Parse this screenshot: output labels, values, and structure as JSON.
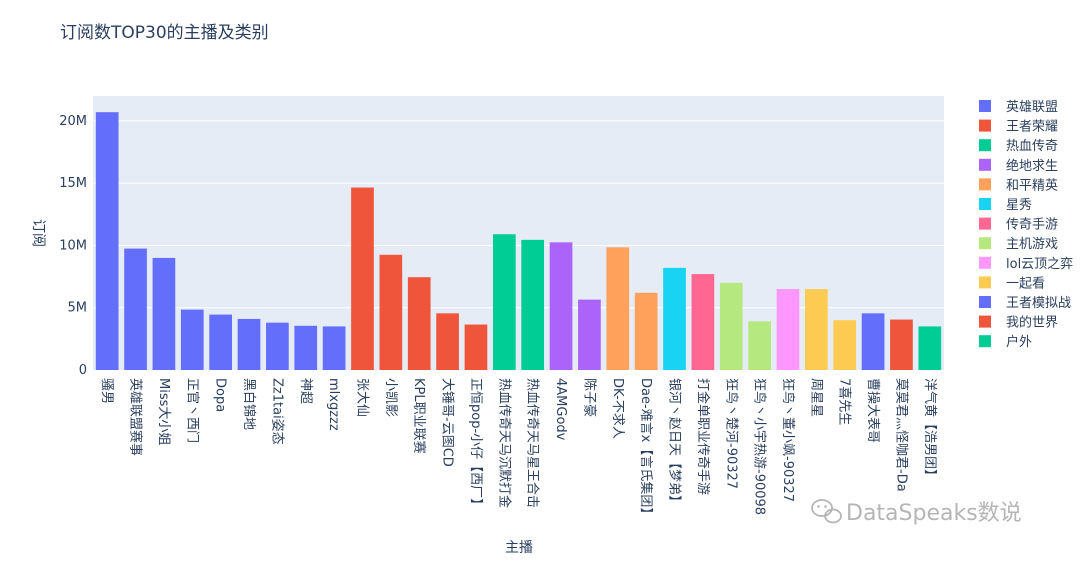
{
  "chart_data": {
    "type": "bar",
    "title": "订阅数TOP30的主播及类别",
    "xlabel": "主播",
    "ylabel": "订阅",
    "ylim": [
      0,
      22
    ],
    "yticks": [
      {
        "value": 0,
        "label": "0"
      },
      {
        "value": 5,
        "label": "5M"
      },
      {
        "value": 10,
        "label": "10M"
      },
      {
        "value": 15,
        "label": "15M"
      },
      {
        "value": 20,
        "label": "20M"
      }
    ],
    "y_unit_note": "values in millions",
    "grid": true,
    "legend_position": "right",
    "series": [
      {
        "name": "英雄联盟",
        "color": "#636efa",
        "points": [
          {
            "x": "骚男",
            "y": 20.7
          },
          {
            "x": "英雄联盟赛事",
            "y": 9.75
          },
          {
            "x": "Miss大小姐",
            "y": 9.0
          },
          {
            "x": "正官丶西门",
            "y": 4.85
          },
          {
            "x": "Dopa",
            "y": 4.45
          },
          {
            "x": "黑白锦地",
            "y": 4.1
          },
          {
            "x": "Zz1tai姿态",
            "y": 3.8
          },
          {
            "x": "神超",
            "y": 3.55
          },
          {
            "x": "mlxgzzz",
            "y": 3.5
          }
        ]
      },
      {
        "name": "王者荣耀",
        "color": "#ef553b",
        "points": [
          {
            "x": "张大仙",
            "y": 14.65
          },
          {
            "x": "小凯影",
            "y": 9.25
          },
          {
            "x": "KPL职业联赛",
            "y": 7.45
          },
          {
            "x": "大锤哥-云图CD",
            "y": 4.55
          },
          {
            "x": "正恒pop-小仔【西厂】",
            "y": 3.65
          }
        ]
      },
      {
        "name": "热血传奇",
        "color": "#00cc96",
        "points": [
          {
            "x": "热血传奇天马沉默打金",
            "y": 10.9
          },
          {
            "x": "热血传奇天马星王合击",
            "y": 10.45
          }
        ]
      },
      {
        "name": "绝地求生",
        "color": "#ab63fa",
        "points": [
          {
            "x": "4AMGodv",
            "y": 10.25
          },
          {
            "x": "陈子豪",
            "y": 5.65
          }
        ]
      },
      {
        "name": "和平精英",
        "color": "#ffa15a",
        "points": [
          {
            "x": "DK-不求人",
            "y": 9.85
          },
          {
            "x": "Dae-难言x【言氏集团】",
            "y": 6.2
          }
        ]
      },
      {
        "name": "星秀",
        "color": "#19d3f3",
        "points": [
          {
            "x": "银河丶赵日天【梦弟】",
            "y": 8.2
          }
        ]
      },
      {
        "name": "传奇手游",
        "color": "#ff6692",
        "points": [
          {
            "x": "打金单职业传奇手游",
            "y": 7.7
          }
        ]
      },
      {
        "name": "主机游戏",
        "color": "#b6e880",
        "points": [
          {
            "x": "狂鸟丶楚河-90327",
            "y": 7.0
          },
          {
            "x": "狂鸟丶小宇热游-90098",
            "y": 3.9
          }
        ]
      },
      {
        "name": "lol云顶之弈",
        "color": "#ff97ff",
        "points": [
          {
            "x": "狂鸟丶董小飒-90327",
            "y": 6.5
          }
        ]
      },
      {
        "name": "一起看",
        "color": "#fecb52",
        "points": [
          {
            "x": "周星星",
            "y": 6.5
          },
          {
            "x": "7喜先生",
            "y": 4.0
          }
        ]
      },
      {
        "name": "王者模拟战",
        "color": "#636efa",
        "points": [
          {
            "x": "曹操大表哥",
            "y": 4.55
          }
        ]
      },
      {
        "name": "我的世界",
        "color": "#ef553b",
        "points": [
          {
            "x": "莫莫君灬怪咖君-Da",
            "y": 4.05
          }
        ]
      },
      {
        "name": "户外",
        "color": "#00cc96",
        "points": [
          {
            "x": "洋气黄【浩男团】",
            "y": 3.5
          }
        ]
      }
    ]
  },
  "watermark": {
    "text": "DataSpeaks数说",
    "icon": "wechat-icon"
  }
}
